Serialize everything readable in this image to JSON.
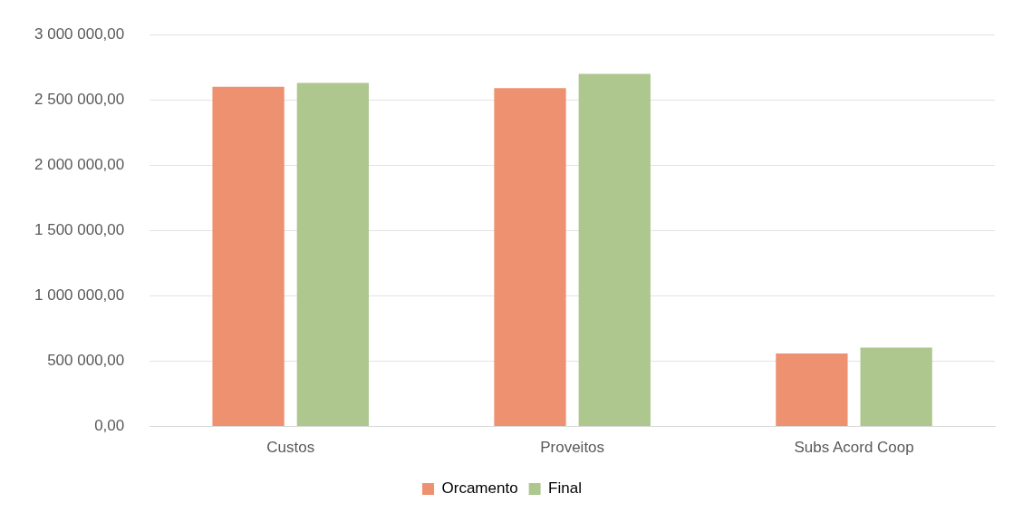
{
  "chart_data": {
    "type": "bar",
    "categories": [
      "Custos",
      "Proveitos",
      "Subs Acord Coop"
    ],
    "series": [
      {
        "name": "Orcamento",
        "color": "#ee9170",
        "values": [
          2600000,
          2590000,
          560000
        ]
      },
      {
        "name": "Final",
        "color": "#adc78e",
        "values": [
          2630000,
          2700000,
          605000
        ]
      }
    ],
    "ylim": [
      0,
      3000000
    ],
    "yticks": [
      {
        "value": 0,
        "label": "0,00"
      },
      {
        "value": 500000,
        "label": "500 000,00"
      },
      {
        "value": 1000000,
        "label": "1 000 000,00"
      },
      {
        "value": 1500000,
        "label": "1 500 000,00"
      },
      {
        "value": 2000000,
        "label": "2 000 000,00"
      },
      {
        "value": 2500000,
        "label": "2 500 000,00"
      },
      {
        "value": 3000000,
        "label": "3 000 000,00"
      }
    ],
    "grid": "y",
    "legend": "bottom"
  }
}
